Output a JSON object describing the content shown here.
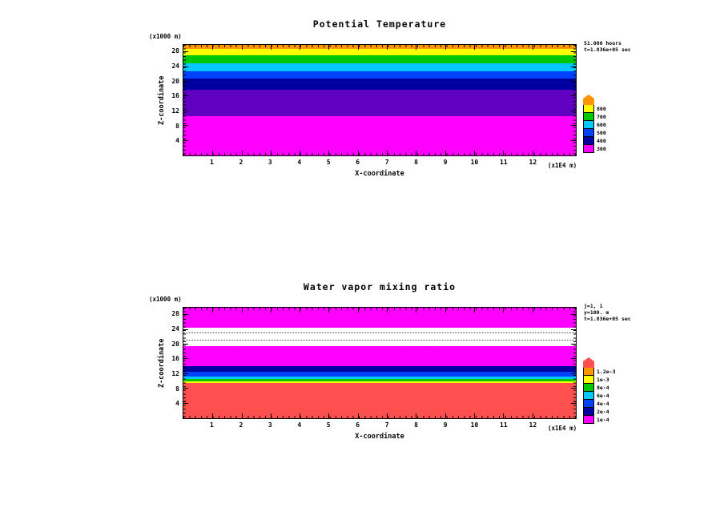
{
  "page": {
    "background": "#ffffff"
  },
  "chart_data": [
    {
      "type": "filled-contour",
      "title": "Potential Temperature",
      "xlabel": "X-coordinate",
      "ylabel": "Z-coordinate",
      "x_unit": "(x1E4 m)",
      "y_unit": "(x1000 m)",
      "xlim": [
        0,
        13.5
      ],
      "ylim": [
        0,
        30
      ],
      "x_ticks": [
        1,
        2,
        3,
        4,
        5,
        6,
        7,
        8,
        9,
        10,
        11,
        12
      ],
      "y_ticks": [
        4,
        8,
        12,
        16,
        20,
        24,
        28
      ],
      "grid": false,
      "annotations": [
        "51.000 hours",
        "t=1.836e+05 sec"
      ],
      "legend": {
        "position": "right",
        "arrow_color": "#ff9600",
        "colors": [
          "#ffff00",
          "#00c800",
          "#00c8ff",
          "#0040ff",
          "#0000a0",
          "#ff00ff"
        ],
        "labels": [
          "800",
          "700",
          "600",
          "500",
          "400",
          "300"
        ]
      },
      "bands": [
        {
          "color": "#ff00ff",
          "frac": 0.357,
          "value_range": "300-400",
          "z_km": "0-10.7"
        },
        {
          "color": "#6000c0",
          "frac": 0.236,
          "value_range": "400-500",
          "z_km": "10.7-17.8"
        },
        {
          "color": "#0000a0",
          "frac": 0.1,
          "value_range": "500-550",
          "z_km": "17.8-20.8"
        },
        {
          "color": "#0040ff",
          "frac": 0.071,
          "value_range": "550-600",
          "z_km": "20.8-22.9"
        },
        {
          "color": "#00c8ff",
          "frac": 0.071,
          "value_range": "600-650",
          "z_km": "22.9-25.1"
        },
        {
          "color": "#00c800",
          "frac": 0.072,
          "value_range": "650-700",
          "z_km": "25.1-27.2"
        },
        {
          "color": "#ffff00",
          "frac": 0.057,
          "value_range": "700-750",
          "z_km": "27.2-28.9"
        },
        {
          "color": "#ff9600",
          "frac": 0.036,
          "value_range": "750-800",
          "z_km": "28.9-30"
        }
      ],
      "dotted_lines": []
    },
    {
      "type": "filled-contour",
      "title": "Water vapor mixing ratio",
      "xlabel": "X-coordinate",
      "ylabel": "Z-coordinate",
      "x_unit": "(x1E4 m)",
      "y_unit": "(x1000 m)",
      "xlim": [
        0,
        13.5
      ],
      "ylim": [
        0,
        30
      ],
      "x_ticks": [
        1,
        2,
        3,
        4,
        5,
        6,
        7,
        8,
        9,
        10,
        11,
        12
      ],
      "y_ticks": [
        4,
        8,
        12,
        16,
        20,
        24,
        28
      ],
      "grid": false,
      "annotations": [
        "j=1, 1",
        "y=100. m",
        "t=1.836e+05 sec"
      ],
      "legend": {
        "position": "right",
        "arrow_color": "#ff5050",
        "colors": [
          "#ff9600",
          "#ffff00",
          "#00c800",
          "#00c8ff",
          "#0040ff",
          "#0000a0",
          "#ff00ff"
        ],
        "labels": [
          "1.2e-3",
          "1e-3",
          "8e-4",
          "6e-4",
          "4e-4",
          "2e-4",
          "1e-4"
        ]
      },
      "bands": [
        {
          "color": "#ff5050",
          "frac": 0.321,
          "value_range": ">1.2e-3",
          "z_km": "0-9.6"
        },
        {
          "color": "#ffff00",
          "frac": 0.014,
          "value_range": "1e-3 to 1.2e-3",
          "z_km": "9.6-10.1"
        },
        {
          "color": "#00c800",
          "frac": 0.021,
          "value_range": "8e-4 to 1e-3",
          "z_km": "10.1-10.7"
        },
        {
          "color": "#00c8ff",
          "frac": 0.021,
          "value_range": "6e-4 to 8e-4",
          "z_km": "10.7-11.3"
        },
        {
          "color": "#0040ff",
          "frac": 0.043,
          "value_range": "4e-4 to 6e-4",
          "z_km": "11.3-12.6"
        },
        {
          "color": "#0000a0",
          "frac": 0.05,
          "value_range": "2e-4 to 4e-4",
          "z_km": "12.6-14.1"
        },
        {
          "color": "#ff00ff",
          "frac": 0.179,
          "value_range": "1e-4 to 2e-4",
          "z_km": "14.1-19.5"
        },
        {
          "color": "#ffffff",
          "frac": 0.171,
          "value_range": "<1e-4",
          "z_km": "19.5-24.6"
        },
        {
          "color": "#ff00ff",
          "frac": 0.18,
          "value_range": "1e-4 to 2e-4",
          "z_km": "24.6-30"
        }
      ],
      "dotted_lines": [
        0.7,
        0.765
      ]
    }
  ]
}
